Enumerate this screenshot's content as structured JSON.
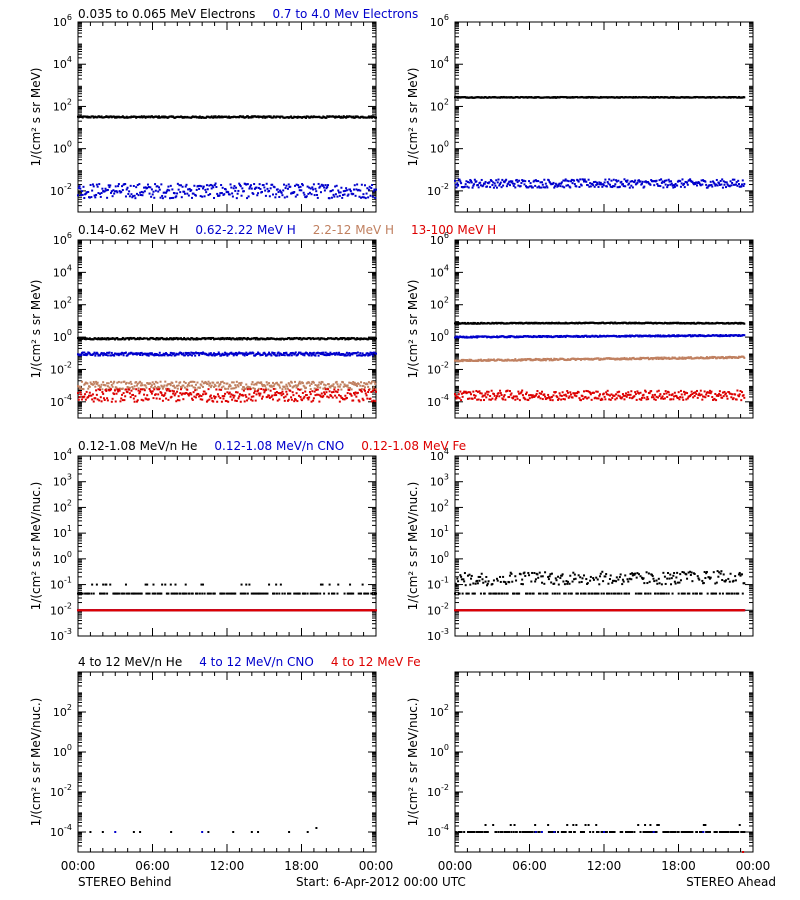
{
  "x_ticks": [
    "00:00",
    "06:00",
    "12:00",
    "18:00",
    "00:00"
  ],
  "footer": {
    "left": "STEREO Behind",
    "center": "Start:  6-Apr-2012 00:00 UTC",
    "right": "STEREO Ahead"
  },
  "panel_rows": [
    {
      "row_title": [
        {
          "text": "0.035 to 0.065 MeV Electrons",
          "color": "#000000"
        },
        {
          "text": "0.7 to 4.0 Mev Electrons",
          "color": "#0000cc"
        }
      ],
      "ylabel": "1/(cm² s sr MeV)",
      "y_range_log10": [
        -3,
        6
      ],
      "y_ticks": [
        {
          "base": "10",
          "exp": "6"
        },
        {
          "base": "10",
          "exp": "4"
        },
        {
          "base": "10",
          "exp": "2"
        },
        {
          "base": "10",
          "exp": "0"
        },
        {
          "base": "10",
          "exp": "-2"
        }
      ]
    },
    {
      "row_title": [
        {
          "text": "0.14-0.62 MeV H",
          "color": "#000000"
        },
        {
          "text": "0.62-2.22 MeV H",
          "color": "#0000cc"
        },
        {
          "text": "2.2-12 MeV H",
          "color": "#c08060"
        },
        {
          "text": "13-100 MeV H",
          "color": "#dd0000"
        }
      ],
      "ylabel": "1/(cm² s sr MeV)",
      "y_range_log10": [
        -5,
        6
      ],
      "y_ticks": [
        {
          "base": "10",
          "exp": "6"
        },
        {
          "base": "10",
          "exp": "4"
        },
        {
          "base": "10",
          "exp": "2"
        },
        {
          "base": "10",
          "exp": "0"
        },
        {
          "base": "10",
          "exp": "-2"
        },
        {
          "base": "10",
          "exp": "-4"
        }
      ]
    },
    {
      "row_title": [
        {
          "text": "0.12-1.08 MeV/n He",
          "color": "#000000"
        },
        {
          "text": "0.12-1.08 MeV/n CNO",
          "color": "#0000cc"
        },
        {
          "text": "0.12-1.08 MeV Fe",
          "color": "#dd0000"
        }
      ],
      "ylabel": "1/(cm² s sr MeV/nuc.)",
      "y_range_log10": [
        -3,
        4
      ],
      "y_ticks": [
        {
          "base": "10",
          "exp": "4"
        },
        {
          "base": "10",
          "exp": "3"
        },
        {
          "base": "10",
          "exp": "2"
        },
        {
          "base": "10",
          "exp": "1"
        },
        {
          "base": "10",
          "exp": "0"
        },
        {
          "base": "10",
          "exp": "-1"
        },
        {
          "base": "10",
          "exp": "-2"
        },
        {
          "base": "10",
          "exp": "-3"
        }
      ]
    },
    {
      "row_title": [
        {
          "text": "4 to 12 MeV/n He",
          "color": "#000000"
        },
        {
          "text": "4 to 12 MeV/n CNO",
          "color": "#0000cc"
        },
        {
          "text": "4 to 12 MeV Fe",
          "color": "#dd0000"
        }
      ],
      "ylabel": "1/(cm² s sr MeV/nuc.)",
      "y_range_log10": [
        -5,
        4
      ],
      "y_ticks": [
        {
          "base": "10",
          "exp": "2"
        },
        {
          "base": "10",
          "exp": "0"
        },
        {
          "base": "10",
          "exp": "-2"
        },
        {
          "base": "10",
          "exp": "-4"
        }
      ]
    }
  ],
  "chart_data": [
    {
      "type": "scatter",
      "panel": "STEREO Behind - electrons",
      "x_unit": "hours since 6-Apr-2012 00:00 UTC",
      "xlim": [
        0,
        24
      ],
      "yscale": "log",
      "ylim_log10": [
        -3,
        6
      ],
      "series": [
        {
          "name": "0.035 to 0.065 MeV Electrons",
          "color": "#000000",
          "x": [
            0,
            3,
            6,
            9,
            12,
            15,
            18,
            21,
            24
          ],
          "log10_y": [
            1.5,
            1.5,
            1.5,
            1.49,
            1.5,
            1.5,
            1.49,
            1.5,
            1.5
          ],
          "scatter_log10": 0.04
        },
        {
          "name": "0.7 to 4.0 Mev Electrons",
          "color": "#0000cc",
          "x": [
            0,
            3,
            6,
            9,
            12,
            15,
            18,
            21,
            24
          ],
          "log10_y": [
            -2.0,
            -2.0,
            -2.0,
            -2.0,
            -2.0,
            -2.0,
            -2.0,
            -2.0,
            -2.0
          ],
          "scatter_log10": 0.35
        }
      ]
    },
    {
      "type": "scatter",
      "panel": "STEREO Ahead - electrons",
      "x_unit": "hours since 6-Apr-2012 00:00 UTC",
      "xlim": [
        0,
        24
      ],
      "yscale": "log",
      "ylim_log10": [
        -3,
        6
      ],
      "series": [
        {
          "name": "0.035 to 0.065 MeV Electrons",
          "color": "#000000",
          "x": [
            0,
            3,
            6,
            9,
            12,
            15,
            18,
            21,
            23.3
          ],
          "log10_y": [
            2.43,
            2.43,
            2.43,
            2.43,
            2.43,
            2.43,
            2.43,
            2.43,
            2.43
          ],
          "scatter_log10": 0.02
        },
        {
          "name": "0.7 to 4.0 Mev Electrons",
          "color": "#0000cc",
          "x": [
            0,
            3,
            6,
            9,
            12,
            15,
            18,
            21,
            23.3
          ],
          "log10_y": [
            -1.65,
            -1.65,
            -1.65,
            -1.65,
            -1.65,
            -1.65,
            -1.65,
            -1.65,
            -1.65
          ],
          "scatter_log10": 0.2
        }
      ]
    },
    {
      "type": "scatter",
      "panel": "STEREO Behind - protons",
      "x_unit": "hours since 6-Apr-2012 00:00 UTC",
      "xlim": [
        0,
        24
      ],
      "yscale": "log",
      "ylim_log10": [
        -5,
        6
      ],
      "series": [
        {
          "name": "0.14-0.62 MeV H",
          "color": "#000000",
          "x": [
            0,
            6,
            12,
            18,
            24
          ],
          "log10_y": [
            -0.1,
            -0.1,
            -0.1,
            -0.1,
            -0.1
          ],
          "scatter_log10": 0.05
        },
        {
          "name": "0.62-2.22 MeV H",
          "color": "#0000cc",
          "x": [
            0,
            6,
            12,
            18,
            24
          ],
          "log10_y": [
            -1.05,
            -1.05,
            -1.05,
            -1.05,
            -1.05
          ],
          "scatter_log10": 0.1
        },
        {
          "name": "2.2-12 MeV H",
          "color": "#c08060",
          "x": [
            0,
            6,
            12,
            18,
            24
          ],
          "log10_y": [
            -3.0,
            -3.0,
            -3.0,
            -3.0,
            -3.0
          ],
          "scatter_log10": 0.25
        },
        {
          "name": "13-100 MeV H",
          "color": "#dd0000",
          "x": [
            0,
            6,
            12,
            18,
            24
          ],
          "log10_y": [
            -3.6,
            -3.6,
            -3.6,
            -3.6,
            -3.6
          ],
          "scatter_log10": 0.4
        }
      ]
    },
    {
      "type": "scatter",
      "panel": "STEREO Ahead - protons",
      "x_unit": "hours since 6-Apr-2012 00:00 UTC",
      "xlim": [
        0,
        24
      ],
      "yscale": "log",
      "ylim_log10": [
        -5,
        6
      ],
      "series": [
        {
          "name": "0.14-0.62 MeV H",
          "color": "#000000",
          "x": [
            0,
            6,
            12,
            18,
            23.3
          ],
          "log10_y": [
            0.85,
            0.86,
            0.87,
            0.86,
            0.85
          ],
          "scatter_log10": 0.03
        },
        {
          "name": "0.62-2.22 MeV H",
          "color": "#0000cc",
          "x": [
            0,
            6,
            12,
            18,
            23.3
          ],
          "log10_y": [
            0.0,
            0.03,
            0.05,
            0.08,
            0.1
          ],
          "scatter_log10": 0.04
        },
        {
          "name": "2.2-12 MeV H",
          "color": "#c08060",
          "x": [
            0,
            6,
            12,
            18,
            23.3
          ],
          "log10_y": [
            -1.45,
            -1.4,
            -1.35,
            -1.3,
            -1.25
          ],
          "scatter_log10": 0.05
        },
        {
          "name": "13-100 MeV H",
          "color": "#dd0000",
          "x": [
            0,
            6,
            12,
            18,
            23.3
          ],
          "log10_y": [
            -3.6,
            -3.6,
            -3.6,
            -3.6,
            -3.6
          ],
          "scatter_log10": 0.3
        }
      ]
    },
    {
      "type": "scatter",
      "panel": "STEREO Behind - suprathermal ions",
      "x_unit": "hours since 6-Apr-2012 00:00 UTC",
      "xlim": [
        0,
        24
      ],
      "yscale": "log",
      "ylim_log10": [
        -3,
        4
      ],
      "series": [
        {
          "name": "0.12-1.08 MeV/n He",
          "color": "#000000",
          "x": [
            0,
            6,
            12,
            18,
            24
          ],
          "log10_y": [
            -1.35,
            -1.35,
            -1.35,
            -1.35,
            -1.35
          ],
          "scatter_log10": 0.0,
          "upper_log10": -1.0
        },
        {
          "name": "0.12-1.08 MeV/n CNO",
          "color": "#0000cc",
          "x": [
            0,
            6,
            12,
            18,
            24
          ],
          "log10_y": [
            -2.0,
            -2.0,
            -2.0,
            -2.0,
            -2.0
          ],
          "scatter_log10": 0.0
        },
        {
          "name": "0.12-1.08 MeV Fe",
          "color": "#dd0000",
          "x": [
            0,
            6,
            12,
            18,
            24
          ],
          "log10_y": [
            -2.0,
            -2.0,
            -2.0,
            -2.0,
            -2.0
          ],
          "scatter_log10": 0.0
        }
      ]
    },
    {
      "type": "scatter",
      "panel": "STEREO Ahead - suprathermal ions",
      "x_unit": "hours since 6-Apr-2012 00:00 UTC",
      "xlim": [
        0,
        24
      ],
      "yscale": "log",
      "ylim_log10": [
        -3,
        4
      ],
      "series": [
        {
          "name": "0.12-1.08 MeV/n He",
          "color": "#000000",
          "x": [
            0,
            6,
            12,
            18,
            23.3
          ],
          "log10_y": [
            -0.8,
            -0.75,
            -0.75,
            -0.75,
            -0.7
          ],
          "scatter_log10": 0.25,
          "baseline_log10": -1.35
        },
        {
          "name": "0.12-1.08 MeV/n CNO",
          "color": "#0000cc",
          "x": [
            0,
            6,
            12,
            18,
            23.3
          ],
          "log10_y": [
            -2.0,
            -2.0,
            -2.0,
            -2.0,
            -2.0
          ],
          "scatter_log10": 0.0
        },
        {
          "name": "0.12-1.08 MeV Fe",
          "color": "#dd0000",
          "x": [
            0,
            6,
            12,
            18,
            23.3
          ],
          "log10_y": [
            -2.0,
            -2.0,
            -2.0,
            -2.0,
            -2.0
          ],
          "scatter_log10": 0.0
        }
      ]
    },
    {
      "type": "scatter",
      "panel": "STEREO Behind - energetic ions",
      "x_unit": "hours since 6-Apr-2012 00:00 UTC",
      "xlim": [
        0,
        24
      ],
      "yscale": "log",
      "ylim_log10": [
        -5,
        4
      ],
      "series": [
        {
          "name": "4 to 12 MeV/n He",
          "color": "#000000",
          "x": [
            1,
            2,
            4.5,
            5,
            7.5,
            10.5,
            12.5,
            14,
            14.5,
            17,
            18.5,
            19.2
          ],
          "log10_y": [
            -4,
            -4,
            -4,
            -4,
            -4,
            -4,
            -4,
            -4,
            -4,
            -4,
            -4,
            -3.8
          ]
        },
        {
          "name": "4 to 12 MeV/n CNO",
          "color": "#0000cc",
          "x": [
            3,
            10
          ],
          "log10_y": [
            -4,
            -4
          ]
        },
        {
          "name": "4 to 12 MeV Fe",
          "color": "#dd0000",
          "x": [],
          "log10_y": []
        }
      ]
    },
    {
      "type": "scatter",
      "panel": "STEREO Ahead - energetic ions",
      "x_unit": "hours since 6-Apr-2012 00:00 UTC",
      "xlim": [
        0,
        24
      ],
      "yscale": "log",
      "ylim_log10": [
        -5,
        4
      ],
      "series": [
        {
          "name": "4 to 12 MeV/n He",
          "color": "#000000",
          "x": [
            0,
            6,
            12,
            18,
            23.3
          ],
          "log10_y": [
            -4.0,
            -4.0,
            -4.0,
            -4.0,
            -4.0
          ],
          "scatter_log10": 0.0,
          "upper_log10": -3.65
        },
        {
          "name": "4 to 12 MeV/n CNO",
          "color": "#0000cc",
          "x": [
            6.5,
            7,
            8,
            12,
            16,
            20
          ],
          "log10_y": [
            -4,
            -4,
            -4,
            -4,
            -4,
            -4
          ]
        },
        {
          "name": "4 to 12 MeV Fe",
          "color": "#dd0000",
          "x": [
            23.2
          ],
          "log10_y": [
            -5.0
          ]
        }
      ]
    }
  ]
}
